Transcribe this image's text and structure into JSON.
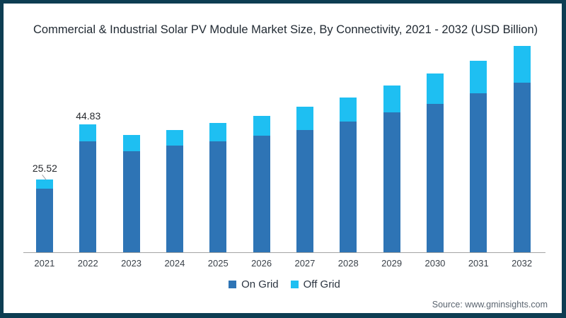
{
  "title": "Commercial & Industrial Solar PV Module Market Size, By Connectivity, 2021 - 2032 (USD Billion)",
  "source": "Source: www.gminsights.com",
  "frame_color": "#0D3D52",
  "legend": [
    {
      "label": "On Grid",
      "color": "#2E74B5"
    },
    {
      "label": "Off Grid",
      "color": "#1EBFF2"
    }
  ],
  "chart_data": {
    "type": "bar",
    "stacked": true,
    "title": "Commercial & Industrial Solar PV Module Market Size, By Connectivity, 2021 - 2032 (USD Billion)",
    "xlabel": "",
    "ylabel": "USD Billion",
    "ylim": [
      0,
      80
    ],
    "grid": false,
    "legend_position": "bottom",
    "categories": [
      "2021",
      "2022",
      "2023",
      "2024",
      "2025",
      "2026",
      "2027",
      "2028",
      "2029",
      "2030",
      "2031",
      "2032"
    ],
    "series": [
      {
        "name": "On Grid",
        "color": "#2E74B5",
        "values": [
          22.3,
          38.8,
          35.3,
          37.3,
          38.8,
          40.8,
          42.9,
          45.8,
          49.0,
          52.1,
          55.7,
          59.3
        ]
      },
      {
        "name": "Off Grid",
        "color": "#1EBFF2",
        "values": [
          3.22,
          6.03,
          5.8,
          5.6,
          6.4,
          6.9,
          8.1,
          8.5,
          9.3,
          10.6,
          11.5,
          12.9
        ]
      }
    ],
    "totals": [
      25.52,
      44.83,
      41.1,
      42.9,
      45.2,
      47.7,
      51.0,
      54.3,
      58.3,
      62.7,
      67.2,
      72.2
    ],
    "data_labels": [
      {
        "category": "2021",
        "text": "25.52",
        "leader": true
      },
      {
        "category": "2022",
        "text": "44.83",
        "leader": false
      }
    ]
  }
}
